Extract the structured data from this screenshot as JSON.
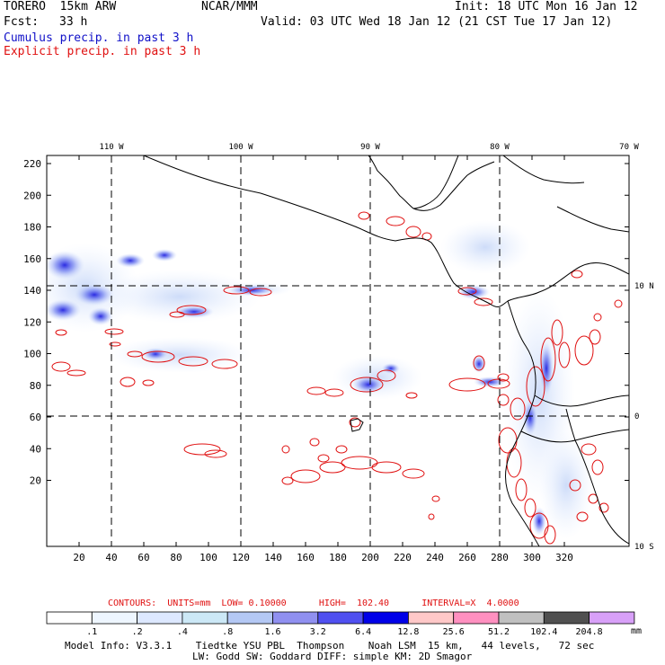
{
  "header": {
    "model": "TORERO  15km ARW",
    "org": "NCAR/MMM",
    "init": "Init: 18 UTC Mon 16 Jan 12",
    "fcst_label": "Fcst:",
    "fcst_value": "33 h",
    "valid": "Valid: 03 UTC Wed 18 Jan 12 (21 CST Tue 17 Jan 12)",
    "legend_cumulus": "Cumulus precip. in past 3 h",
    "legend_explicit": "Explicit precip. in past 3 h",
    "color_cumulus": "#1010c8",
    "color_explicit": "#e01010"
  },
  "map": {
    "lon_labels": [
      "110 W",
      "100 W",
      "90 W",
      "80 W",
      "70 W"
    ],
    "lat_labels": [
      "10 N",
      "0",
      "10 S"
    ],
    "y_ticks": [
      "220",
      "200",
      "180",
      "160",
      "140",
      "120",
      "100",
      "80",
      "60",
      "40",
      "20"
    ],
    "x_ticks": [
      "20",
      "40",
      "60",
      "80",
      "100",
      "120",
      "140",
      "160",
      "180",
      "200",
      "220",
      "240",
      "260",
      "280",
      "300",
      "320"
    ]
  },
  "contour_info": {
    "units": "CONTOURS:  UNITS=mm  LOW= 0.10000",
    "high": "HIGH=  102.40",
    "interval": "INTERVAL=X  4.0000"
  },
  "colorbar": {
    "labels": [
      ".1",
      ".2",
      ".4",
      ".8",
      "1.6",
      "3.2",
      "6.4",
      "12.8",
      "25.6",
      "51.2",
      "102.4",
      "204.8"
    ],
    "unit": "mm",
    "colors": [
      "#ffffff",
      "#eef6ff",
      "#dde8ff",
      "#cce8f6",
      "#b4c8f4",
      "#9090f0",
      "#5050f0",
      "#0000e8",
      "#ffc8c8",
      "#ff90c0",
      "#c0c0c0",
      "#505050",
      "#d8a0f8"
    ]
  },
  "footer": {
    "line1": "Model Info: V3.3.1    Tiedtke YSU PBL  Thompson    Noah LSM  15 km,   44 levels,   72 sec",
    "line2": "LW: Godd SW: Goddard DIFF: simple KM: 2D Smagor"
  }
}
